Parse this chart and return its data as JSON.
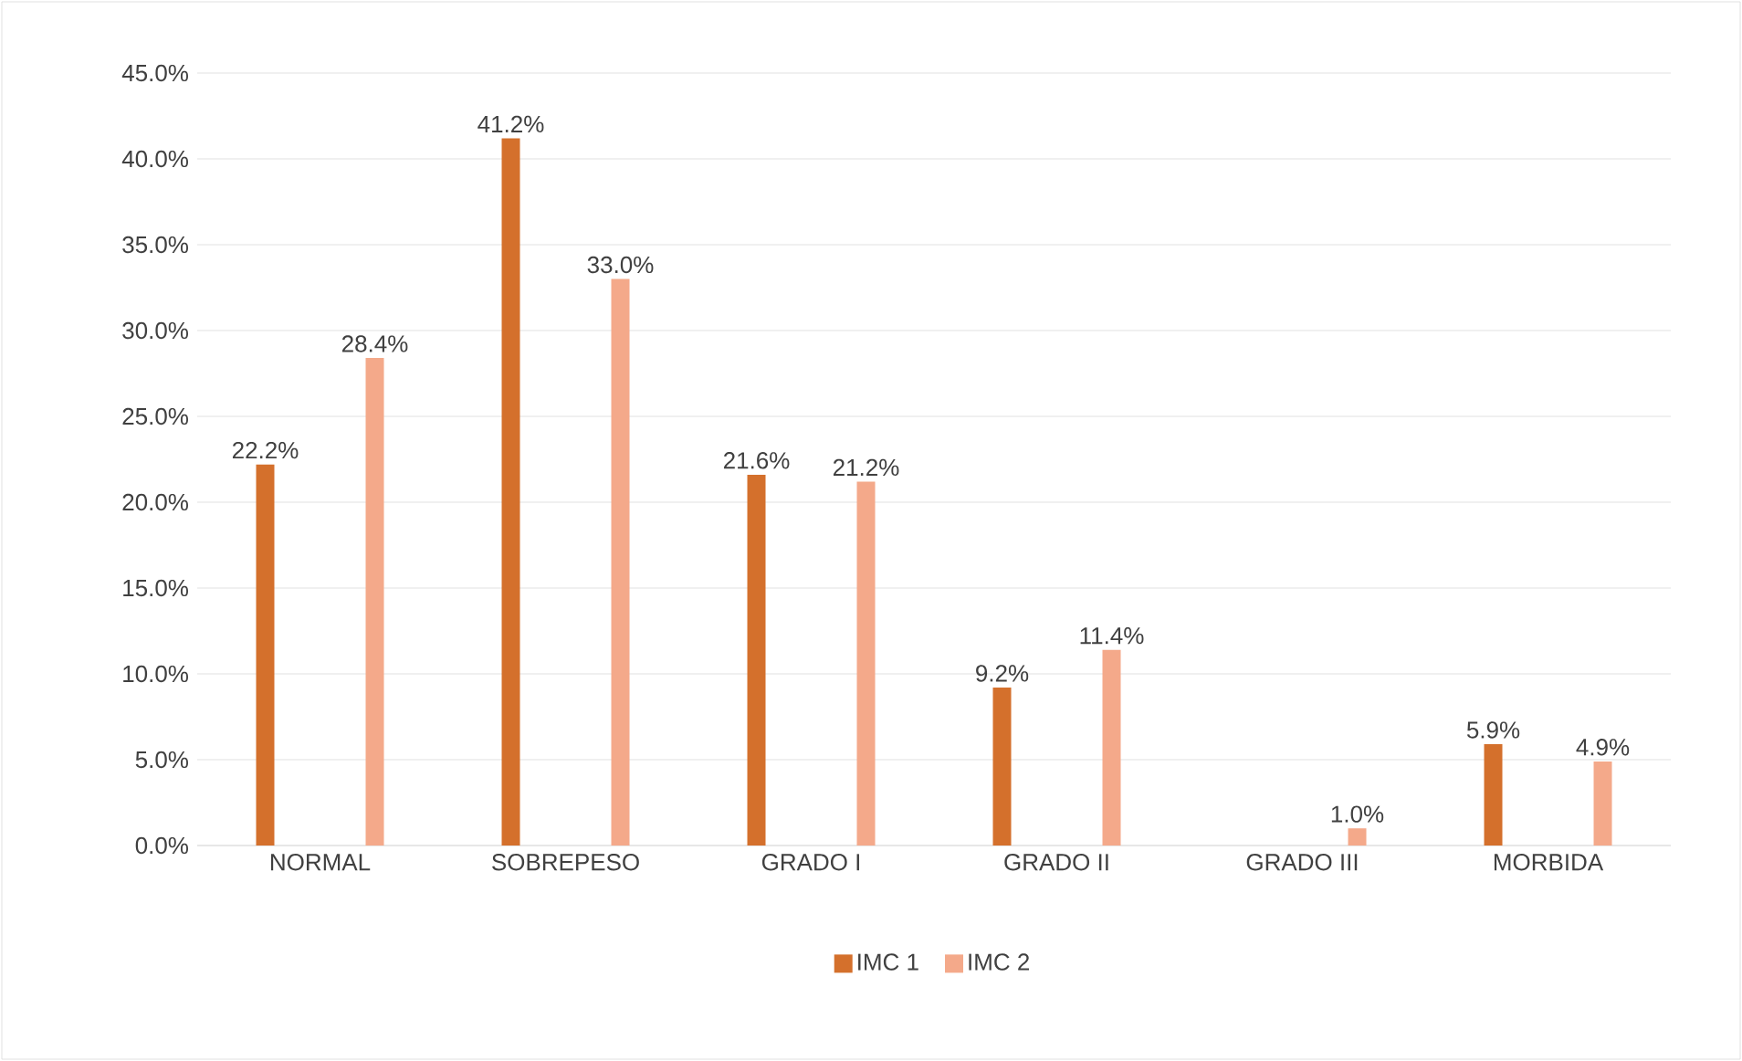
{
  "chart_data": {
    "type": "bar",
    "categories": [
      "NORMAL",
      "SOBREPESO",
      "GRADO I",
      "GRADO II",
      "GRADO III",
      "MORBIDA"
    ],
    "series": [
      {
        "name": "IMC 1",
        "color": "#d4702c",
        "values": [
          22.2,
          41.2,
          21.6,
          9.2,
          null,
          5.9
        ],
        "value_labels": [
          "22.2%",
          "41.2%",
          "21.6%",
          "9.2%",
          null,
          "5.9%"
        ]
      },
      {
        "name": "IMC 2",
        "color": "#f4a98a",
        "values": [
          28.4,
          33.0,
          21.2,
          11.4,
          1.0,
          4.9
        ],
        "value_labels": [
          "28.4%",
          "33.0%",
          "21.2%",
          "11.4%",
          "1.0%",
          "4.9%"
        ]
      }
    ],
    "ylim": [
      0,
      45
    ],
    "yticks": [
      {
        "value": 0,
        "label": "0.0%"
      },
      {
        "value": 5,
        "label": "5.0%"
      },
      {
        "value": 10,
        "label": "10.0%"
      },
      {
        "value": 15,
        "label": "15.0%"
      },
      {
        "value": 20,
        "label": "20.0%"
      },
      {
        "value": 25,
        "label": "25.0%"
      },
      {
        "value": 30,
        "label": "30.0%"
      },
      {
        "value": 35,
        "label": "35.0%"
      },
      {
        "value": 40,
        "label": "40.0%"
      },
      {
        "value": 45,
        "label": "45.0%"
      }
    ],
    "grid": "y",
    "legend": "bottom"
  }
}
